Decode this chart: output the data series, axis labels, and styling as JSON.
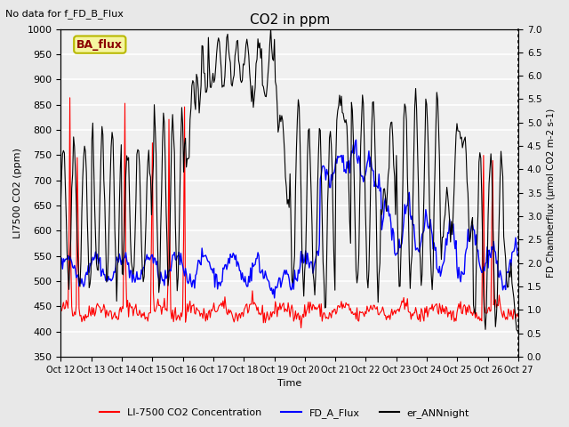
{
  "title": "CO2 in ppm",
  "top_left_text": "No data for f_FD_B_Flux",
  "box_label": "BA_flux",
  "xlabel": "Time",
  "ylabel_left": "LI7500 CO2 (ppm)",
  "ylabel_right": "FD Chamberflux (μmol CO2 m-2 s-1)",
  "ylim_left": [
    350,
    1000
  ],
  "ylim_right": [
    0.0,
    7.0
  ],
  "yticks_left": [
    350,
    400,
    450,
    500,
    550,
    600,
    650,
    700,
    750,
    800,
    850,
    900,
    950,
    1000
  ],
  "yticks_right": [
    0.0,
    0.5,
    1.0,
    1.5,
    2.0,
    2.5,
    3.0,
    3.5,
    4.0,
    4.5,
    5.0,
    5.5,
    6.0,
    6.5,
    7.0
  ],
  "xtick_labels": [
    "Oct 12",
    "Oct 13",
    "Oct 14",
    "Oct 15",
    "Oct 16",
    "Oct 17",
    "Oct 18",
    "Oct 19",
    "Oct 20",
    "Oct 21",
    "Oct 22",
    "Oct 23",
    "Oct 24",
    "Oct 25",
    "Oct 26",
    "Oct 27"
  ],
  "legend_entries": [
    "LI-7500 CO2 Concentration",
    "FD_A_Flux",
    "er_ANNnight"
  ],
  "legend_colors": [
    "red",
    "blue",
    "black"
  ],
  "background_color": "#e8e8e8",
  "plot_bg_color": "#f0f0f0",
  "grid_color": "white",
  "box_facecolor": "#f5f5a0",
  "box_edgecolor": "#b8b800",
  "box_text_color": "#8b0000",
  "figsize": [
    6.4,
    4.8
  ],
  "dpi": 100
}
